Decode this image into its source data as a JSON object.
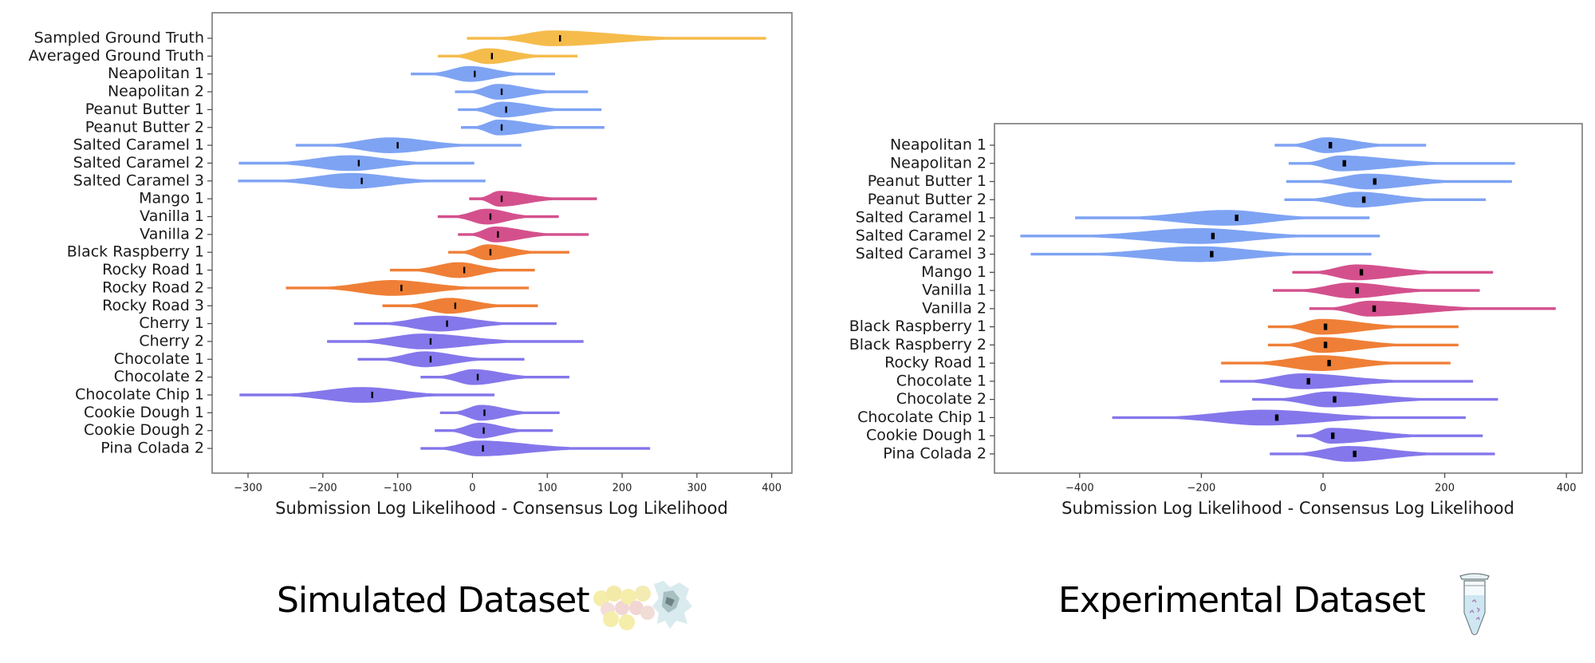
{
  "colors": {
    "ground_truth": "#F5BC4C",
    "blue": "#7EA3F3",
    "pink": "#D4508D",
    "orange": "#EF7F36",
    "purple": "#8477EB",
    "median": "#000000",
    "frame": "#7a7a7a"
  },
  "chart_data": [
    {
      "type": "violin",
      "orientation": "horizontal",
      "title": "Simulated Dataset",
      "icon": "protein-structure-icon",
      "xlabel": "Submission Log Likelihood - Consensus Log Likelihood",
      "ylabel": "",
      "xlim": [
        -348,
        427
      ],
      "xticks": [
        -300,
        -200,
        -100,
        0,
        100,
        200,
        300,
        400
      ],
      "xtick_labels": [
        "−300",
        "−200",
        "−100",
        "0",
        "100",
        "200",
        "300",
        "400"
      ],
      "grid": false,
      "series": [
        {
          "name": "Sampled Ground Truth",
          "group": "ground_truth",
          "min": -7,
          "median": 117,
          "max": 392
        },
        {
          "name": "Averaged Ground Truth",
          "group": "ground_truth",
          "min": -46,
          "median": 26,
          "max": 140
        },
        {
          "name": "Neapolitan 1",
          "group": "blue",
          "min": -82,
          "median": 3,
          "max": 110
        },
        {
          "name": "Neapolitan 2",
          "group": "blue",
          "min": -23,
          "median": 39,
          "max": 154
        },
        {
          "name": "Peanut Butter 1",
          "group": "blue",
          "min": -19,
          "median": 45,
          "max": 172
        },
        {
          "name": "Peanut Butter 2",
          "group": "blue",
          "min": -15,
          "median": 39,
          "max": 176
        },
        {
          "name": "Salted Caramel 1",
          "group": "blue",
          "min": -236,
          "median": -100,
          "max": 65
        },
        {
          "name": "Salted Caramel 2",
          "group": "blue",
          "min": -312,
          "median": -152,
          "max": 2
        },
        {
          "name": "Salted Caramel 3",
          "group": "blue",
          "min": -313,
          "median": -148,
          "max": 17
        },
        {
          "name": "Mango 1",
          "group": "pink",
          "min": -4,
          "median": 39,
          "max": 166
        },
        {
          "name": "Vanilla 1",
          "group": "pink",
          "min": -46,
          "median": 24,
          "max": 115
        },
        {
          "name": "Vanilla 2",
          "group": "pink",
          "min": -19,
          "median": 34,
          "max": 155
        },
        {
          "name": "Black Raspberry 1",
          "group": "orange",
          "min": -32,
          "median": 24,
          "max": 129
        },
        {
          "name": "Rocky Road 1",
          "group": "orange",
          "min": -110,
          "median": -11,
          "max": 83
        },
        {
          "name": "Rocky Road 2",
          "group": "orange",
          "min": -249,
          "median": -95,
          "max": 75
        },
        {
          "name": "Rocky Road 3",
          "group": "orange",
          "min": -120,
          "median": -23,
          "max": 87
        },
        {
          "name": "Cherry 1",
          "group": "purple",
          "min": -158,
          "median": -34,
          "max": 112
        },
        {
          "name": "Cherry 2",
          "group": "purple",
          "min": -194,
          "median": -56,
          "max": 148
        },
        {
          "name": "Chocolate 1",
          "group": "purple",
          "min": -153,
          "median": -56,
          "max": 69
        },
        {
          "name": "Chocolate 2",
          "group": "purple",
          "min": -69,
          "median": 7,
          "max": 129
        },
        {
          "name": "Chocolate Chip 1",
          "group": "purple",
          "min": -311,
          "median": -134,
          "max": 29
        },
        {
          "name": "Cookie Dough 1",
          "group": "purple",
          "min": -43,
          "median": 16,
          "max": 116
        },
        {
          "name": "Cookie Dough 2",
          "group": "purple",
          "min": -50,
          "median": 15,
          "max": 107
        },
        {
          "name": "Pina Colada 2",
          "group": "purple",
          "min": -69,
          "median": 14,
          "max": 237
        }
      ]
    },
    {
      "type": "violin",
      "orientation": "horizontal",
      "title": "Experimental Dataset",
      "icon": "test-tube-icon",
      "xlabel": "Submission Log Likelihood - Consensus Log Likelihood",
      "ylabel": "",
      "xlim": [
        -540,
        426
      ],
      "xticks": [
        -400,
        -200,
        0,
        200,
        400
      ],
      "xtick_labels": [
        "−400",
        "−200",
        "0",
        "200",
        "400"
      ],
      "grid": false,
      "series": [
        {
          "name": "Neapolitan 1",
          "group": "blue",
          "min": -79,
          "median": 12,
          "max": 169
        },
        {
          "name": "Neapolitan 2",
          "group": "blue",
          "min": -56,
          "median": 35,
          "max": 315
        },
        {
          "name": "Peanut Butter 1",
          "group": "blue",
          "min": -60,
          "median": 85,
          "max": 310
        },
        {
          "name": "Peanut Butter 2",
          "group": "blue",
          "min": -63,
          "median": 67,
          "max": 267
        },
        {
          "name": "Salted Caramel 1",
          "group": "blue",
          "min": -407,
          "median": -142,
          "max": 76
        },
        {
          "name": "Salted Caramel 2",
          "group": "blue",
          "min": -497,
          "median": -181,
          "max": 93
        },
        {
          "name": "Salted Caramel 3",
          "group": "blue",
          "min": -480,
          "median": -183,
          "max": 79
        },
        {
          "name": "Mango 1",
          "group": "pink",
          "min": -50,
          "median": 63,
          "max": 279
        },
        {
          "name": "Vanilla 1",
          "group": "pink",
          "min": -82,
          "median": 56,
          "max": 257
        },
        {
          "name": "Vanilla 2",
          "group": "pink",
          "min": -22,
          "median": 84,
          "max": 382
        },
        {
          "name": "Black Raspberry 1",
          "group": "orange",
          "min": -90,
          "median": 4,
          "max": 222
        },
        {
          "name": "Black Raspberry 2",
          "group": "orange",
          "min": -90,
          "median": 4,
          "max": 222
        },
        {
          "name": "Rocky Road 1",
          "group": "orange",
          "min": -167,
          "median": 10,
          "max": 209
        },
        {
          "name": "Chocolate 1",
          "group": "purple",
          "min": -169,
          "median": -24,
          "max": 246
        },
        {
          "name": "Chocolate 2",
          "group": "purple",
          "min": -116,
          "median": 19,
          "max": 287
        },
        {
          "name": "Chocolate Chip 1",
          "group": "purple",
          "min": -346,
          "median": -76,
          "max": 234
        },
        {
          "name": "Cookie Dough 1",
          "group": "purple",
          "min": -43,
          "median": 16,
          "max": 262
        },
        {
          "name": "Pina Colada 2",
          "group": "purple",
          "min": -87,
          "median": 52,
          "max": 282
        }
      ]
    }
  ]
}
